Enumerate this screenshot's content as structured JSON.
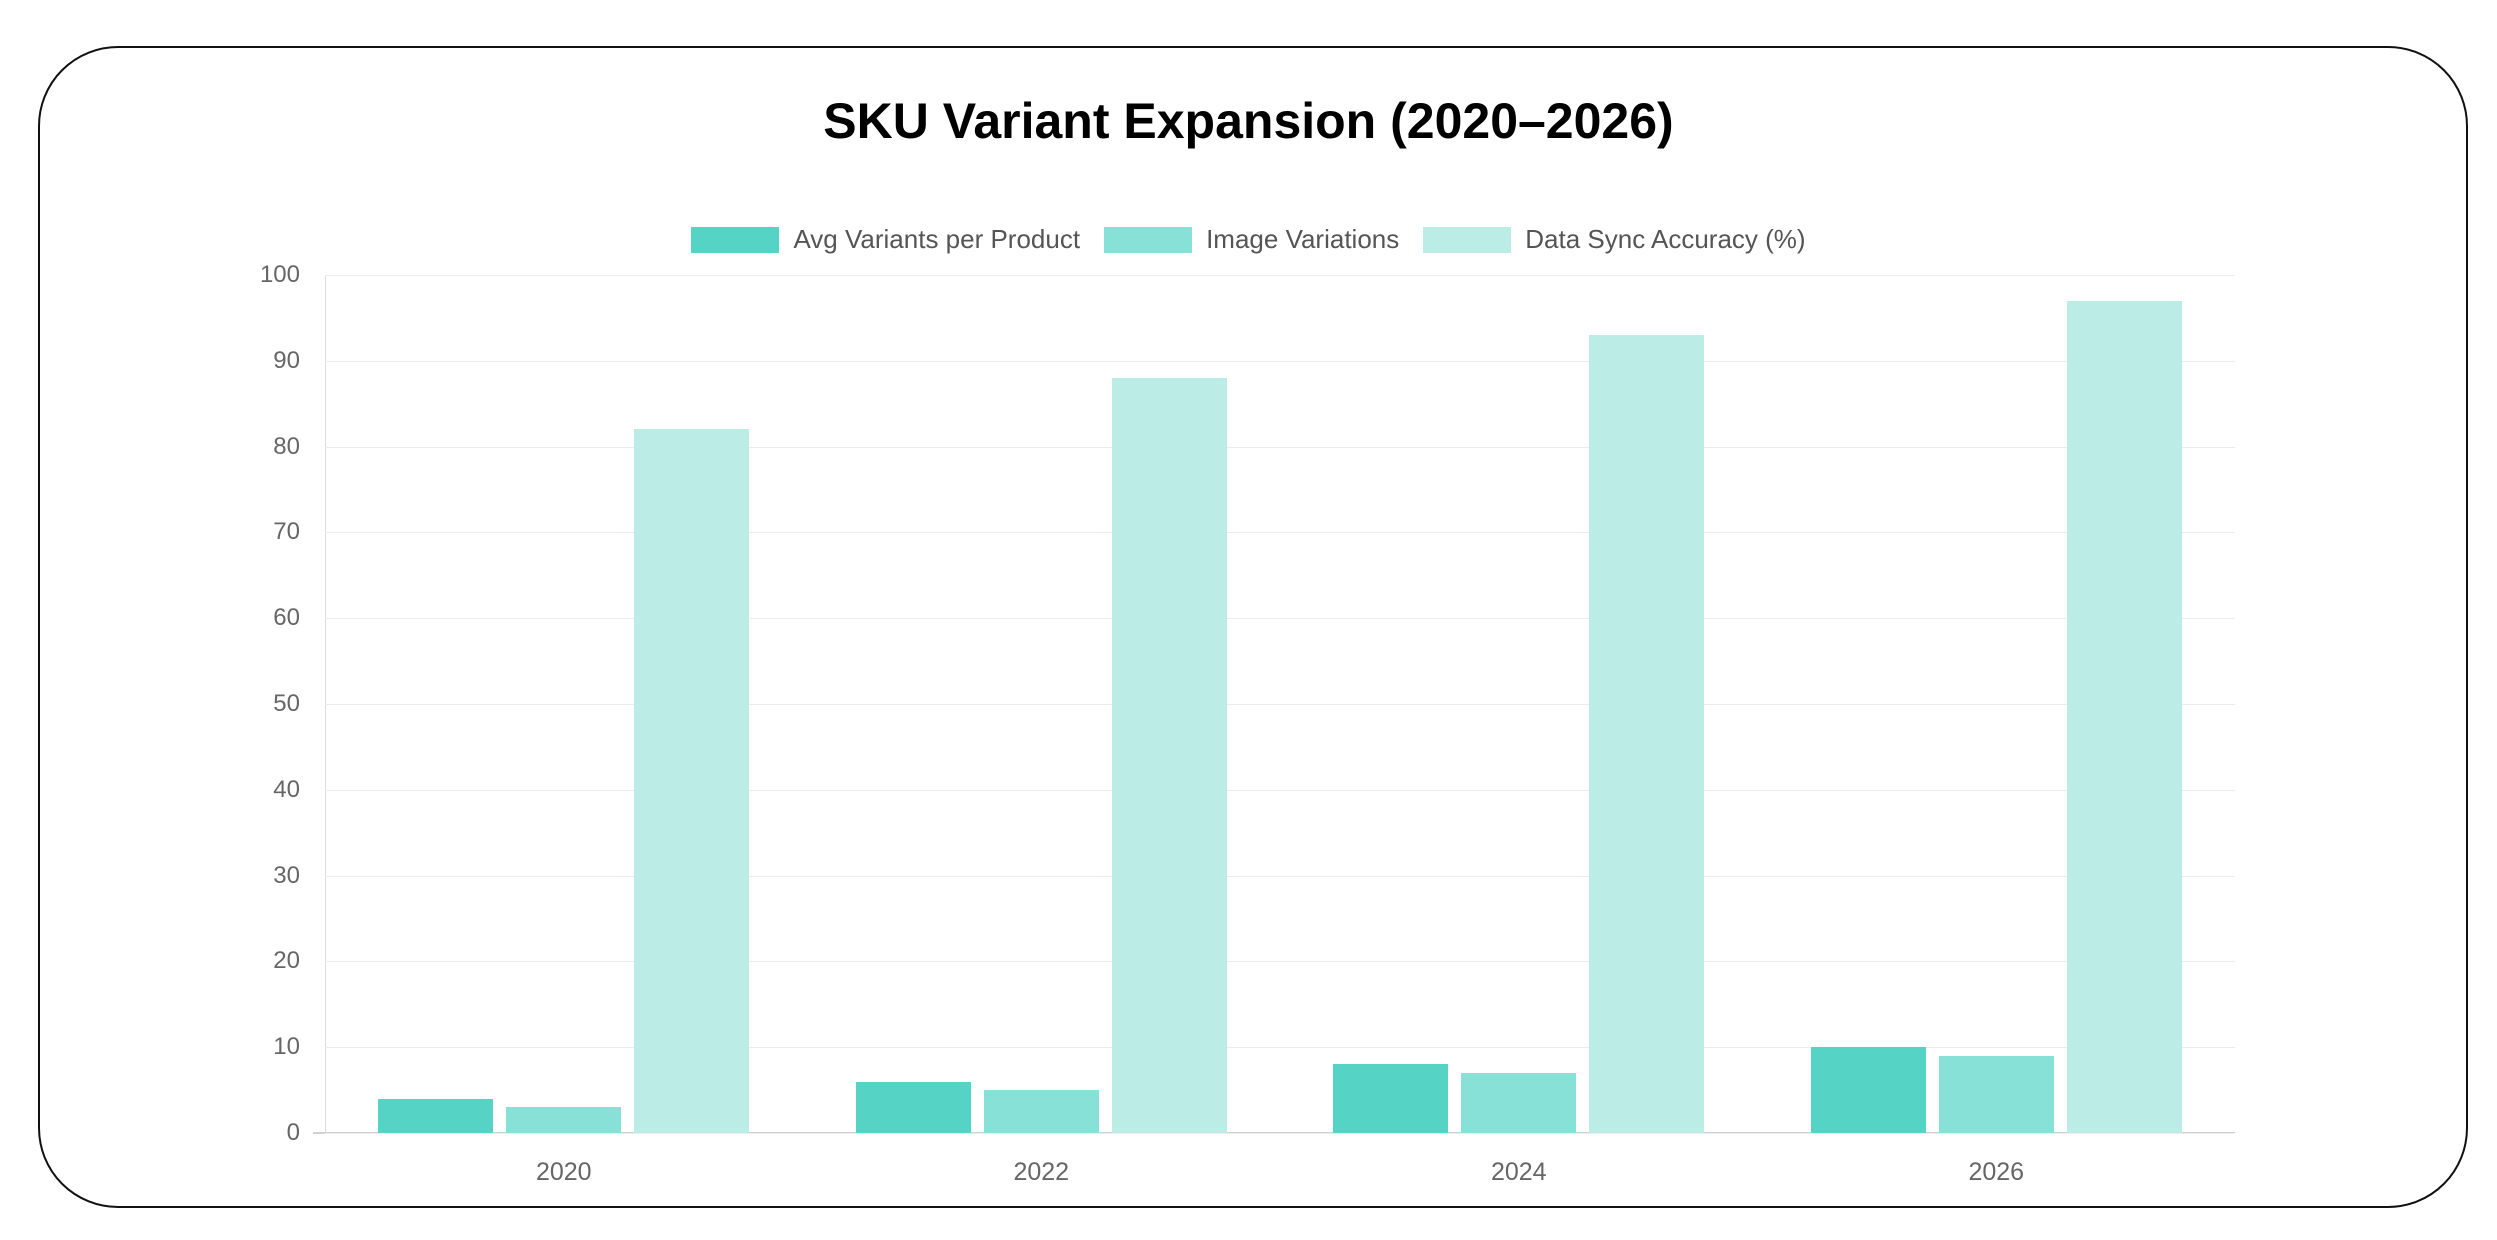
{
  "chart_data": {
    "type": "bar",
    "title": "SKU Variant Expansion (2020–2026)",
    "categories": [
      "2020",
      "2022",
      "2024",
      "2026"
    ],
    "series": [
      {
        "name": "Avg Variants per Product",
        "color": "#55d3c5",
        "values": [
          4,
          6,
          8,
          10
        ]
      },
      {
        "name": "Image Variations",
        "color": "#88e1d6",
        "values": [
          3,
          5,
          7,
          9
        ]
      },
      {
        "name": "Data Sync Accuracy (%)",
        "color": "#bbede6",
        "values": [
          82,
          88,
          93,
          97
        ]
      }
    ],
    "xlabel": "",
    "ylabel": "",
    "ylim": [
      0,
      100
    ],
    "yticks": [
      0,
      10,
      20,
      30,
      40,
      50,
      60,
      70,
      80,
      90,
      100
    ],
    "grid": true,
    "legend_position": "top"
  }
}
